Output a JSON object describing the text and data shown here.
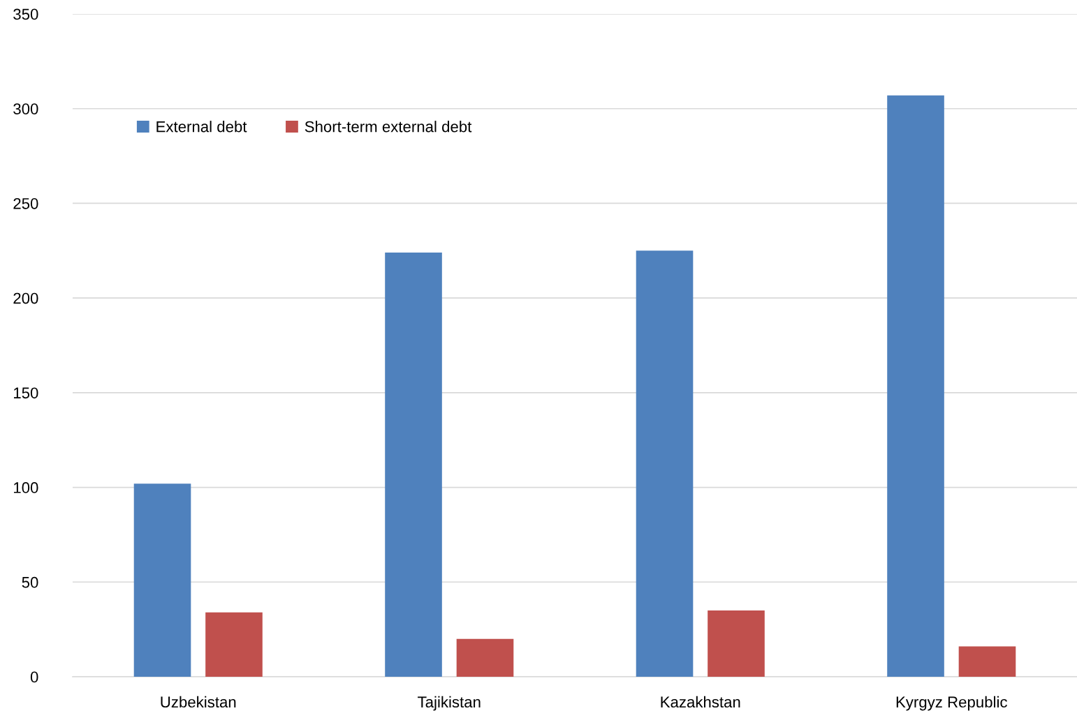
{
  "chart_data": {
    "type": "bar",
    "categories": [
      "Uzbekistan",
      "Tajikistan",
      "Kazakhstan",
      "Kyrgyz Republic"
    ],
    "series": [
      {
        "name": "External debt",
        "color": "#4f81bd",
        "values": [
          102,
          224,
          225,
          307
        ]
      },
      {
        "name": "Short-term external debt",
        "color": "#c0504d",
        "values": [
          34,
          20,
          35,
          16
        ]
      }
    ],
    "ylim": [
      0,
      350
    ],
    "yticks": [
      0,
      50,
      100,
      150,
      200,
      250,
      300,
      350
    ],
    "grid": "y",
    "legend": "top left"
  }
}
